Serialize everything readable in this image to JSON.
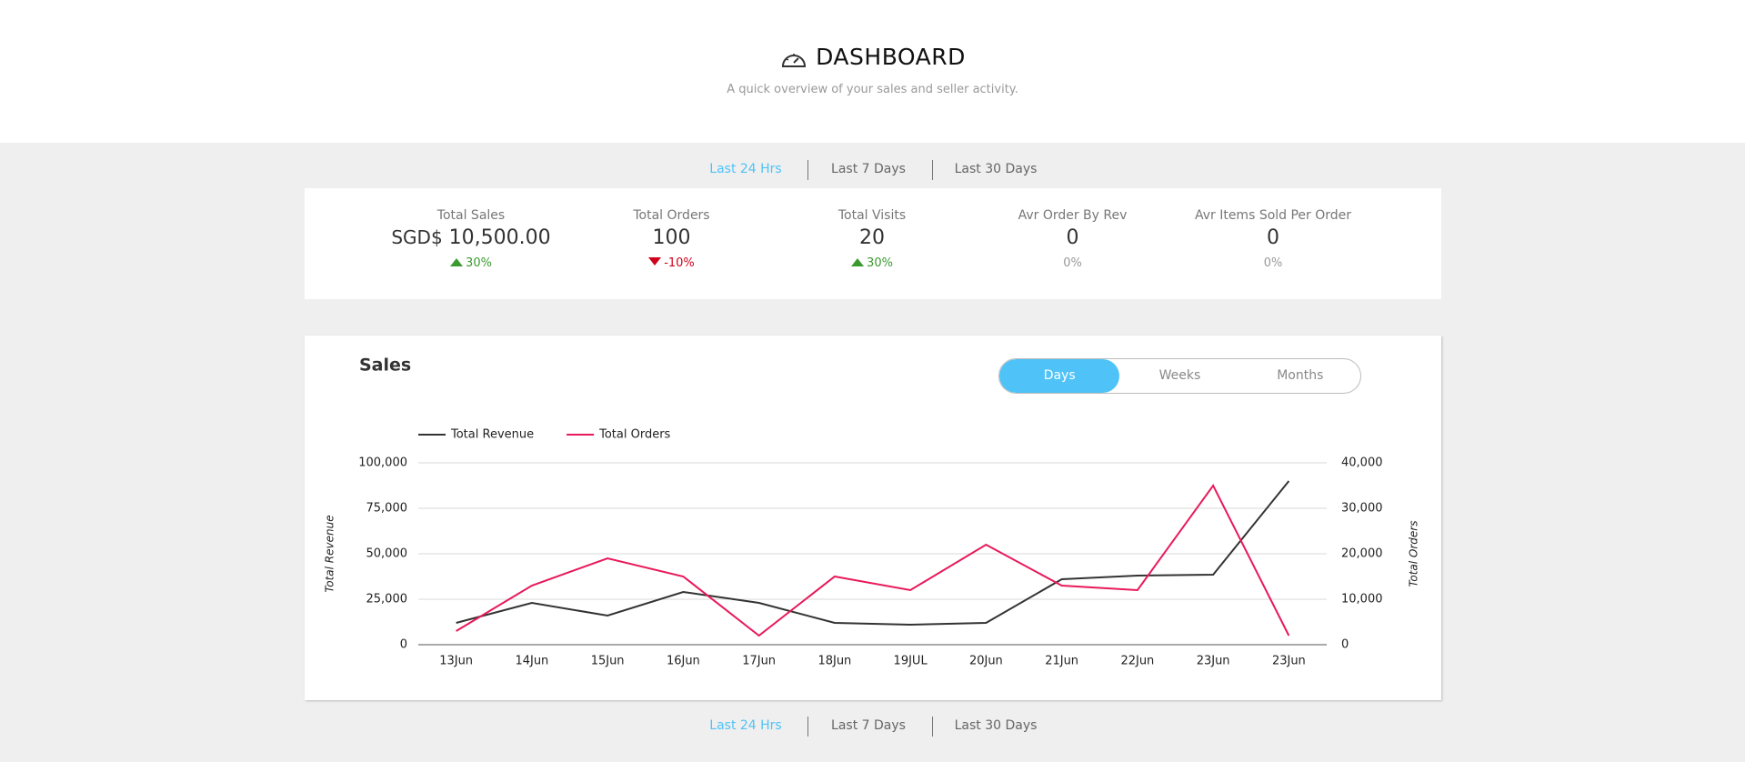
{
  "header": {
    "title": "DASHBOARD",
    "subtitle": "A quick overview of your sales and seller activity."
  },
  "tabs": {
    "items": [
      "Last 24 Hrs",
      "Last 7 Days",
      "Last 30 Days"
    ],
    "active": 0
  },
  "stats": [
    {
      "label": "Total Sales",
      "prefix": "SGD$",
      "value": "10,500.00",
      "change": "30%",
      "trend": "up"
    },
    {
      "label": "Total Orders",
      "value": 100,
      "change": "-10%",
      "trend": "down"
    },
    {
      "label": "Total Visits",
      "value": 20,
      "change": "30%",
      "trend": "up"
    },
    {
      "label": "Avr Order By Rev",
      "value": 0,
      "change": "0%",
      "trend": "flat"
    },
    {
      "label": "Avr Items Sold Per Order",
      "value": 0,
      "change": "0%",
      "trend": "flat"
    }
  ],
  "period_toggle": {
    "items": [
      "Days",
      "Weeks",
      "Months"
    ],
    "active": 0
  },
  "chart_data": {
    "type": "line",
    "title": "Sales",
    "categories": [
      "13Jun",
      "14Jun",
      "15Jun",
      "16Jun",
      "17Jun",
      "18Jun",
      "19JUL",
      "20Jun",
      "21Jun",
      "22Jun",
      "23Jun",
      "23Jun"
    ],
    "series": [
      {
        "name": "Total Revenue",
        "color": "#333333",
        "values": [
          12000,
          23000,
          16000,
          29000,
          23000,
          12000,
          11000,
          12000,
          36000,
          38000,
          38500,
          90000
        ]
      },
      {
        "name": "Total Orders",
        "color": "#e8195a",
        "axis": "y2",
        "values": [
          3000,
          13000,
          19000,
          15000,
          2000,
          15000,
          12000,
          22000,
          13000,
          12000,
          35000,
          2000
        ]
      }
    ],
    "ylabel": "Total Revenue",
    "y2label": "Total Orders",
    "ylim": [
      0,
      100000
    ],
    "yticks": [
      0,
      {
        "value": 25000,
        "label": "25,000"
      },
      {
        "value": 50000,
        "label": "50,000"
      },
      {
        "value": 75000,
        "label": "75,000"
      },
      {
        "value": 100000,
        "label": "100,000"
      }
    ],
    "y2lim": [
      0,
      40000
    ],
    "y2ticks": [
      0,
      {
        "value": 10000,
        "label": "10,000"
      },
      {
        "value": 20000,
        "label": "20,000"
      },
      {
        "value": 30000,
        "label": "30,000"
      },
      {
        "value": 40000,
        "label": "40,000"
      }
    ],
    "grid": true
  }
}
